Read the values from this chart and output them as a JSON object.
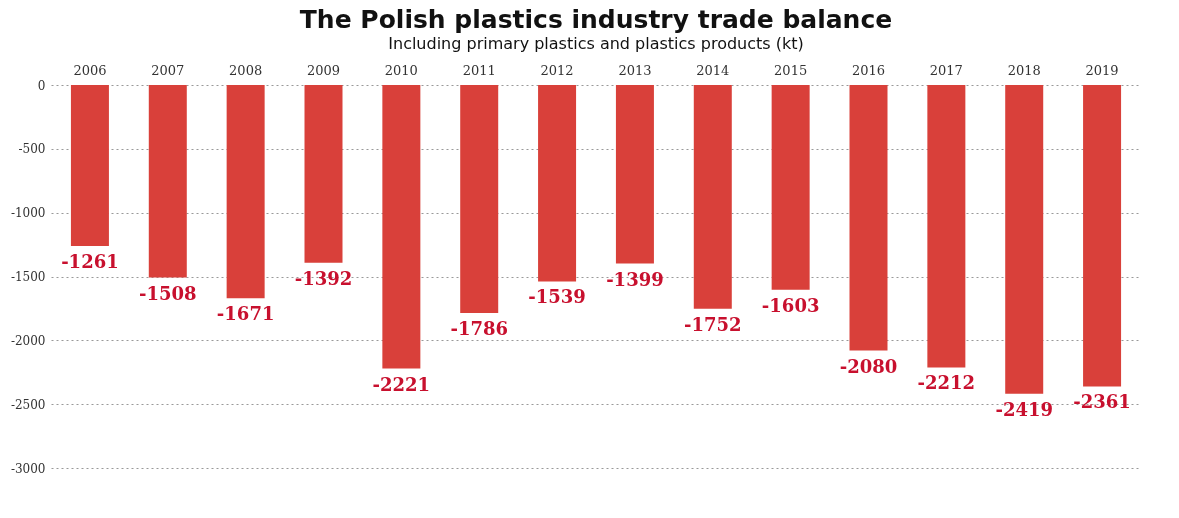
{
  "chart_data": {
    "type": "bar",
    "title": "The Polish plastics industry trade balance",
    "subtitle": "Including primary plastics and plastics products (kt)",
    "categories": [
      "2006",
      "2007",
      "2008",
      "2009",
      "2010",
      "2011",
      "2012",
      "2013",
      "2014",
      "2015",
      "2016",
      "2017",
      "2018",
      "2019"
    ],
    "values": [
      -1261,
      -1508,
      -1671,
      -1392,
      -2221,
      -1786,
      -1539,
      -1399,
      -1752,
      -1603,
      -2080,
      -2212,
      -2419,
      -2361
    ],
    "color": "#d9403a",
    "ylim": [
      -3000,
      0
    ],
    "yticks": [
      0,
      -500,
      -1000,
      -1500,
      -2000,
      -2500,
      -3000
    ],
    "grid": "y",
    "data_labels": true
  }
}
